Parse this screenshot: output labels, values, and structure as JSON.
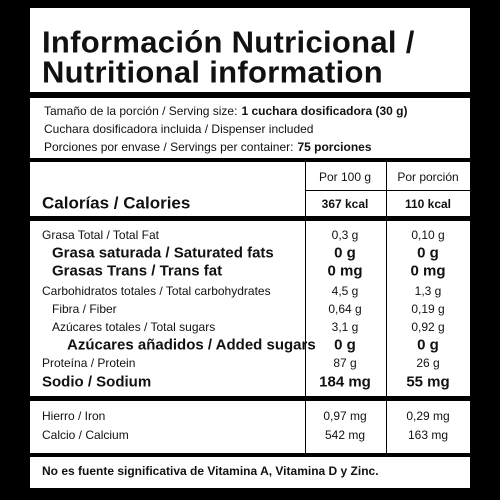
{
  "header": {
    "title_lines": [
      "Información Nutricional /",
      "Nutritional information"
    ]
  },
  "serving": [
    {
      "label": "Tamaño de la porción / Serving size:",
      "value": "1 cuchara dosificadora (30 g)"
    },
    {
      "label": "Cuchara dosificadora incluida / Dispenser included"
    },
    {
      "label": "Porciones por envase / Servings per container:",
      "value": "75 porciones"
    }
  ],
  "table": {
    "columns": [
      "Por 100 g",
      "Por porción"
    ],
    "calories": {
      "label": "Calorías / Calories",
      "per100": "367 kcal",
      "perServing": "110 kcal"
    },
    "rows": [
      {
        "label": "Grasa Total / Total Fat",
        "per100": "0,3 g",
        "perServing": "0,10 g",
        "indent": 0,
        "bold": false
      },
      {
        "label": "Grasa saturada / Saturated fats",
        "per100": "0 g",
        "perServing": "0 g",
        "indent": 1,
        "bold": true
      },
      {
        "label": "Grasas Trans / Trans fat",
        "per100": "0 mg",
        "perServing": "0 mg",
        "indent": 1,
        "bold": true
      },
      {
        "label": "Carbohidratos totales / Total carbohydrates",
        "per100": "4,5 g",
        "perServing": "1,3 g",
        "indent": 0,
        "bold": false
      },
      {
        "label": "Fibra / Fiber",
        "per100": "0,64 g",
        "perServing": "0,19 g",
        "indent": 1,
        "bold": false
      },
      {
        "label": "Azúcares totales / Total sugars",
        "per100": "3,1 g",
        "perServing": "0,92 g",
        "indent": 1,
        "bold": false
      },
      {
        "label": "Azúcares añadidos / Added sugars",
        "per100": "0 g",
        "perServing": "0 g",
        "indent": 2,
        "bold": true
      },
      {
        "label": "Proteína / Protein",
        "per100": "87 g",
        "perServing": "26 g",
        "indent": 0,
        "bold": false
      },
      {
        "label": "Sodio / Sodium",
        "per100": "184 mg",
        "perServing": "55 mg",
        "indent": 0,
        "bold": true
      }
    ],
    "minerals": [
      {
        "label": "Hierro / Iron",
        "per100": "0,97 mg",
        "perServing": "0,29 mg"
      },
      {
        "label": "Calcio / Calcium",
        "per100": "542 mg",
        "perServing": "163 mg"
      }
    ]
  },
  "footnote": "No es fuente significativa de Vitamina A, Vitamina D y Zinc."
}
